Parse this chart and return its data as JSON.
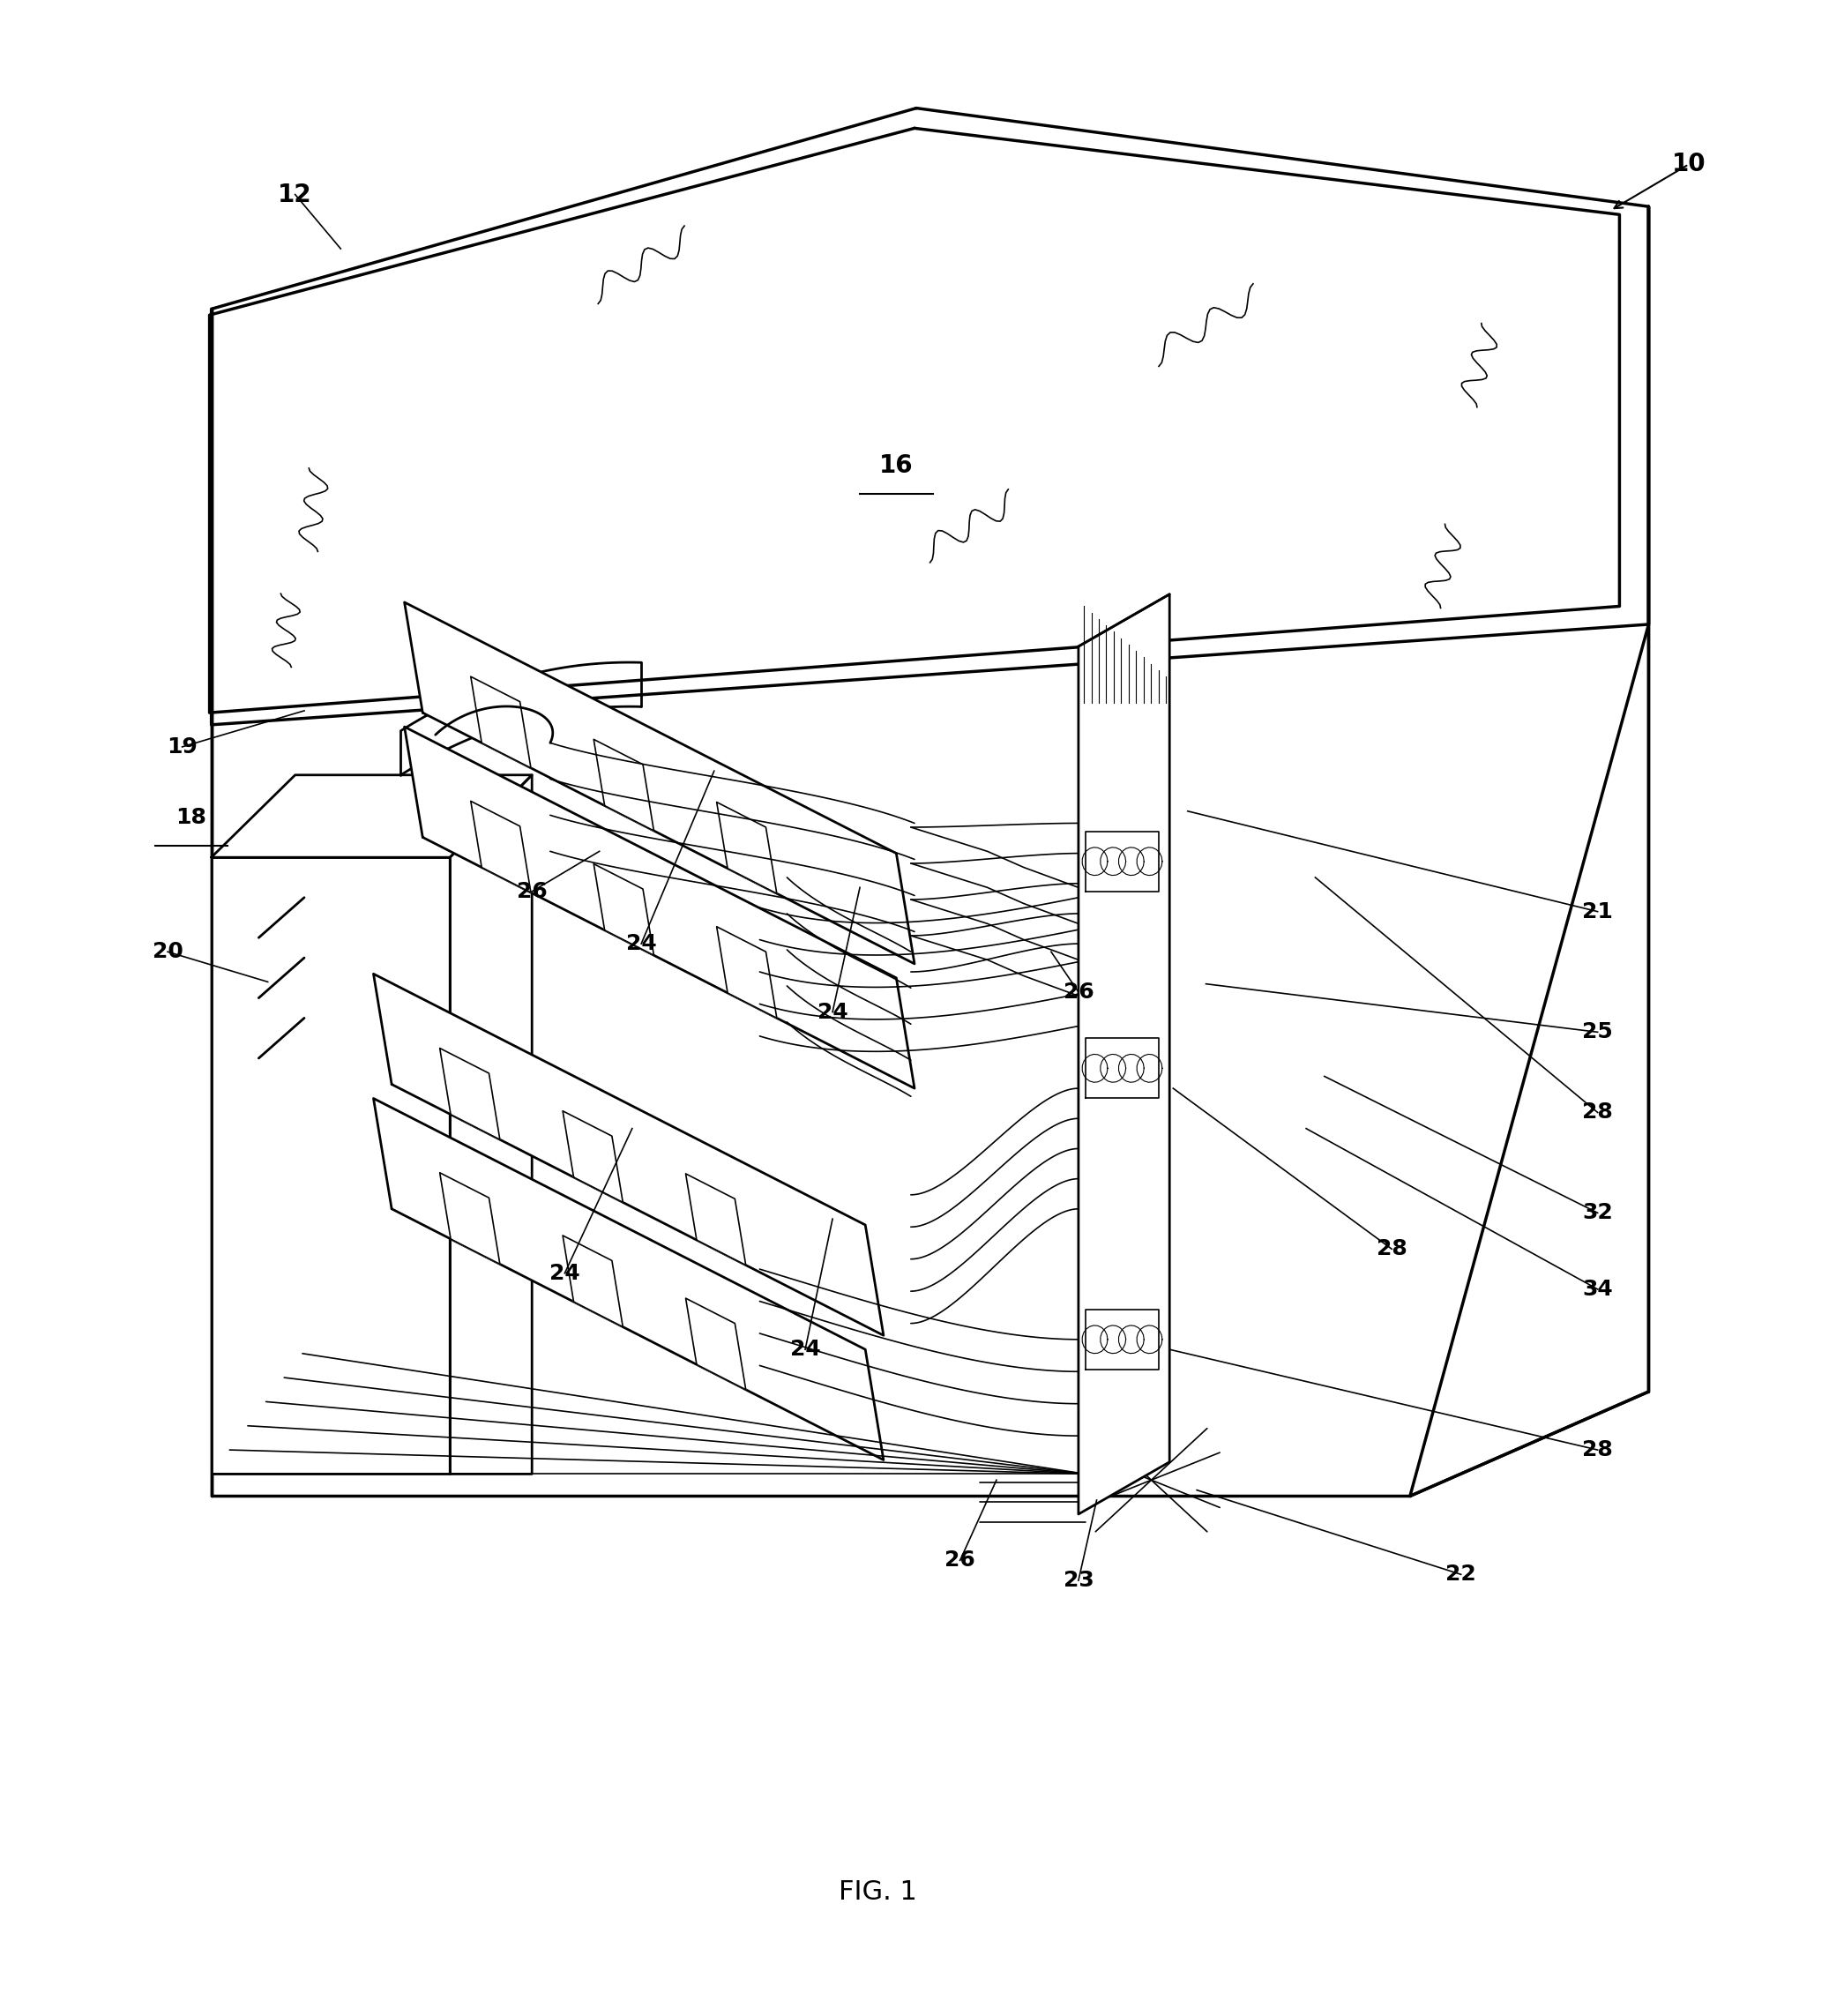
{
  "background_color": "#ffffff",
  "line_color": "#000000",
  "fig_width": 20.74,
  "fig_height": 22.86,
  "caption": "FIG. 1",
  "lw_main": 2.0,
  "lw_thin": 1.2,
  "lw_thick": 2.5
}
